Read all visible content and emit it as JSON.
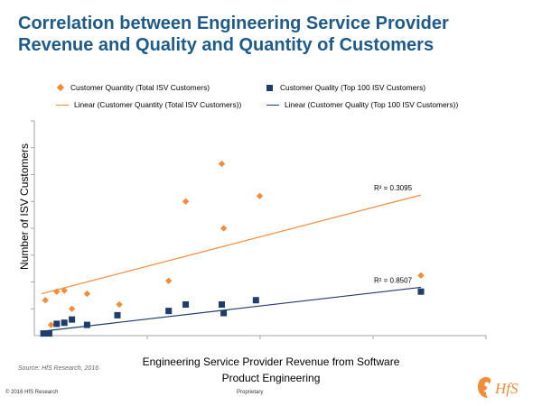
{
  "title_lines": [
    "Correlation between Engineering Service Provider",
    "Revenue and Quality and Quantity of Customers"
  ],
  "legend": {
    "quantity_points": "Customer Quantity (Total ISV Customers)",
    "quality_points": "Customer Quality (Top 100 ISV Customers)",
    "quantity_linear": "Linear (Customer Quantity (Total ISV Customers))",
    "quality_linear": "Linear (Customer Quality (Top 100 ISV Customers))"
  },
  "source": "Source: HfS Research, 2016",
  "footer": {
    "copyright": "© 2016 HfS Research",
    "proprietary": "Proprietary"
  },
  "logo_text": "HfS",
  "colors": {
    "title": "#1f5b8a",
    "quantity": "#f28c3a",
    "quality": "#1f3d6b",
    "axis": "#a6a6a6"
  },
  "chart_data": {
    "type": "scatter",
    "title": "Correlation between Engineering Service Provider Revenue and Quality and Quantity of Customers",
    "xlabel": "Engineering Service Provider Revenue from Software Product Engineering",
    "ylabel": "Number of ISV Customers",
    "xlim": [
      0,
      100
    ],
    "ylim": [
      0,
      100
    ],
    "x_tick_count": 4,
    "y_tick_count": 8,
    "grid": false,
    "legend_position": "top",
    "series": [
      {
        "name": "Customer Quantity (Total ISV Customers)",
        "marker": "diamond",
        "points": [
          [
            1,
            16.5
          ],
          [
            2.5,
            5
          ],
          [
            4,
            20.5
          ],
          [
            6,
            21
          ],
          [
            8,
            12.5
          ],
          [
            12,
            19.5
          ],
          [
            20.5,
            14.5
          ],
          [
            33.5,
            25.5
          ],
          [
            38,
            62.5
          ],
          [
            47.5,
            80
          ],
          [
            48,
            50
          ],
          [
            57.5,
            65
          ],
          [
            100,
            28
          ]
        ]
      },
      {
        "name": "Customer Quality (Top 100 ISV Customers)",
        "marker": "square",
        "points": [
          [
            0.5,
            1
          ],
          [
            2,
            1
          ],
          [
            4,
            5.5
          ],
          [
            6,
            6
          ],
          [
            8,
            7.5
          ],
          [
            12,
            5
          ],
          [
            20,
            9.5
          ],
          [
            33.5,
            11.5
          ],
          [
            38,
            14.5
          ],
          [
            47.5,
            14.5
          ],
          [
            48,
            10.5
          ],
          [
            56.5,
            16.5
          ],
          [
            100,
            20.5
          ]
        ]
      }
    ],
    "trendlines": [
      {
        "name": "Linear (Customer Quantity (Total ISV Customers))",
        "type": "linear",
        "from": [
          0,
          19.5
        ],
        "to": [
          100,
          65.5
        ],
        "r2_label": "R² = 0.3095"
      },
      {
        "name": "Linear (Customer Quality (Top 100 ISV Customers))",
        "type": "linear",
        "from": [
          0,
          2
        ],
        "to": [
          100,
          22.5
        ],
        "r2_label": "R² = 0.8507"
      }
    ]
  }
}
